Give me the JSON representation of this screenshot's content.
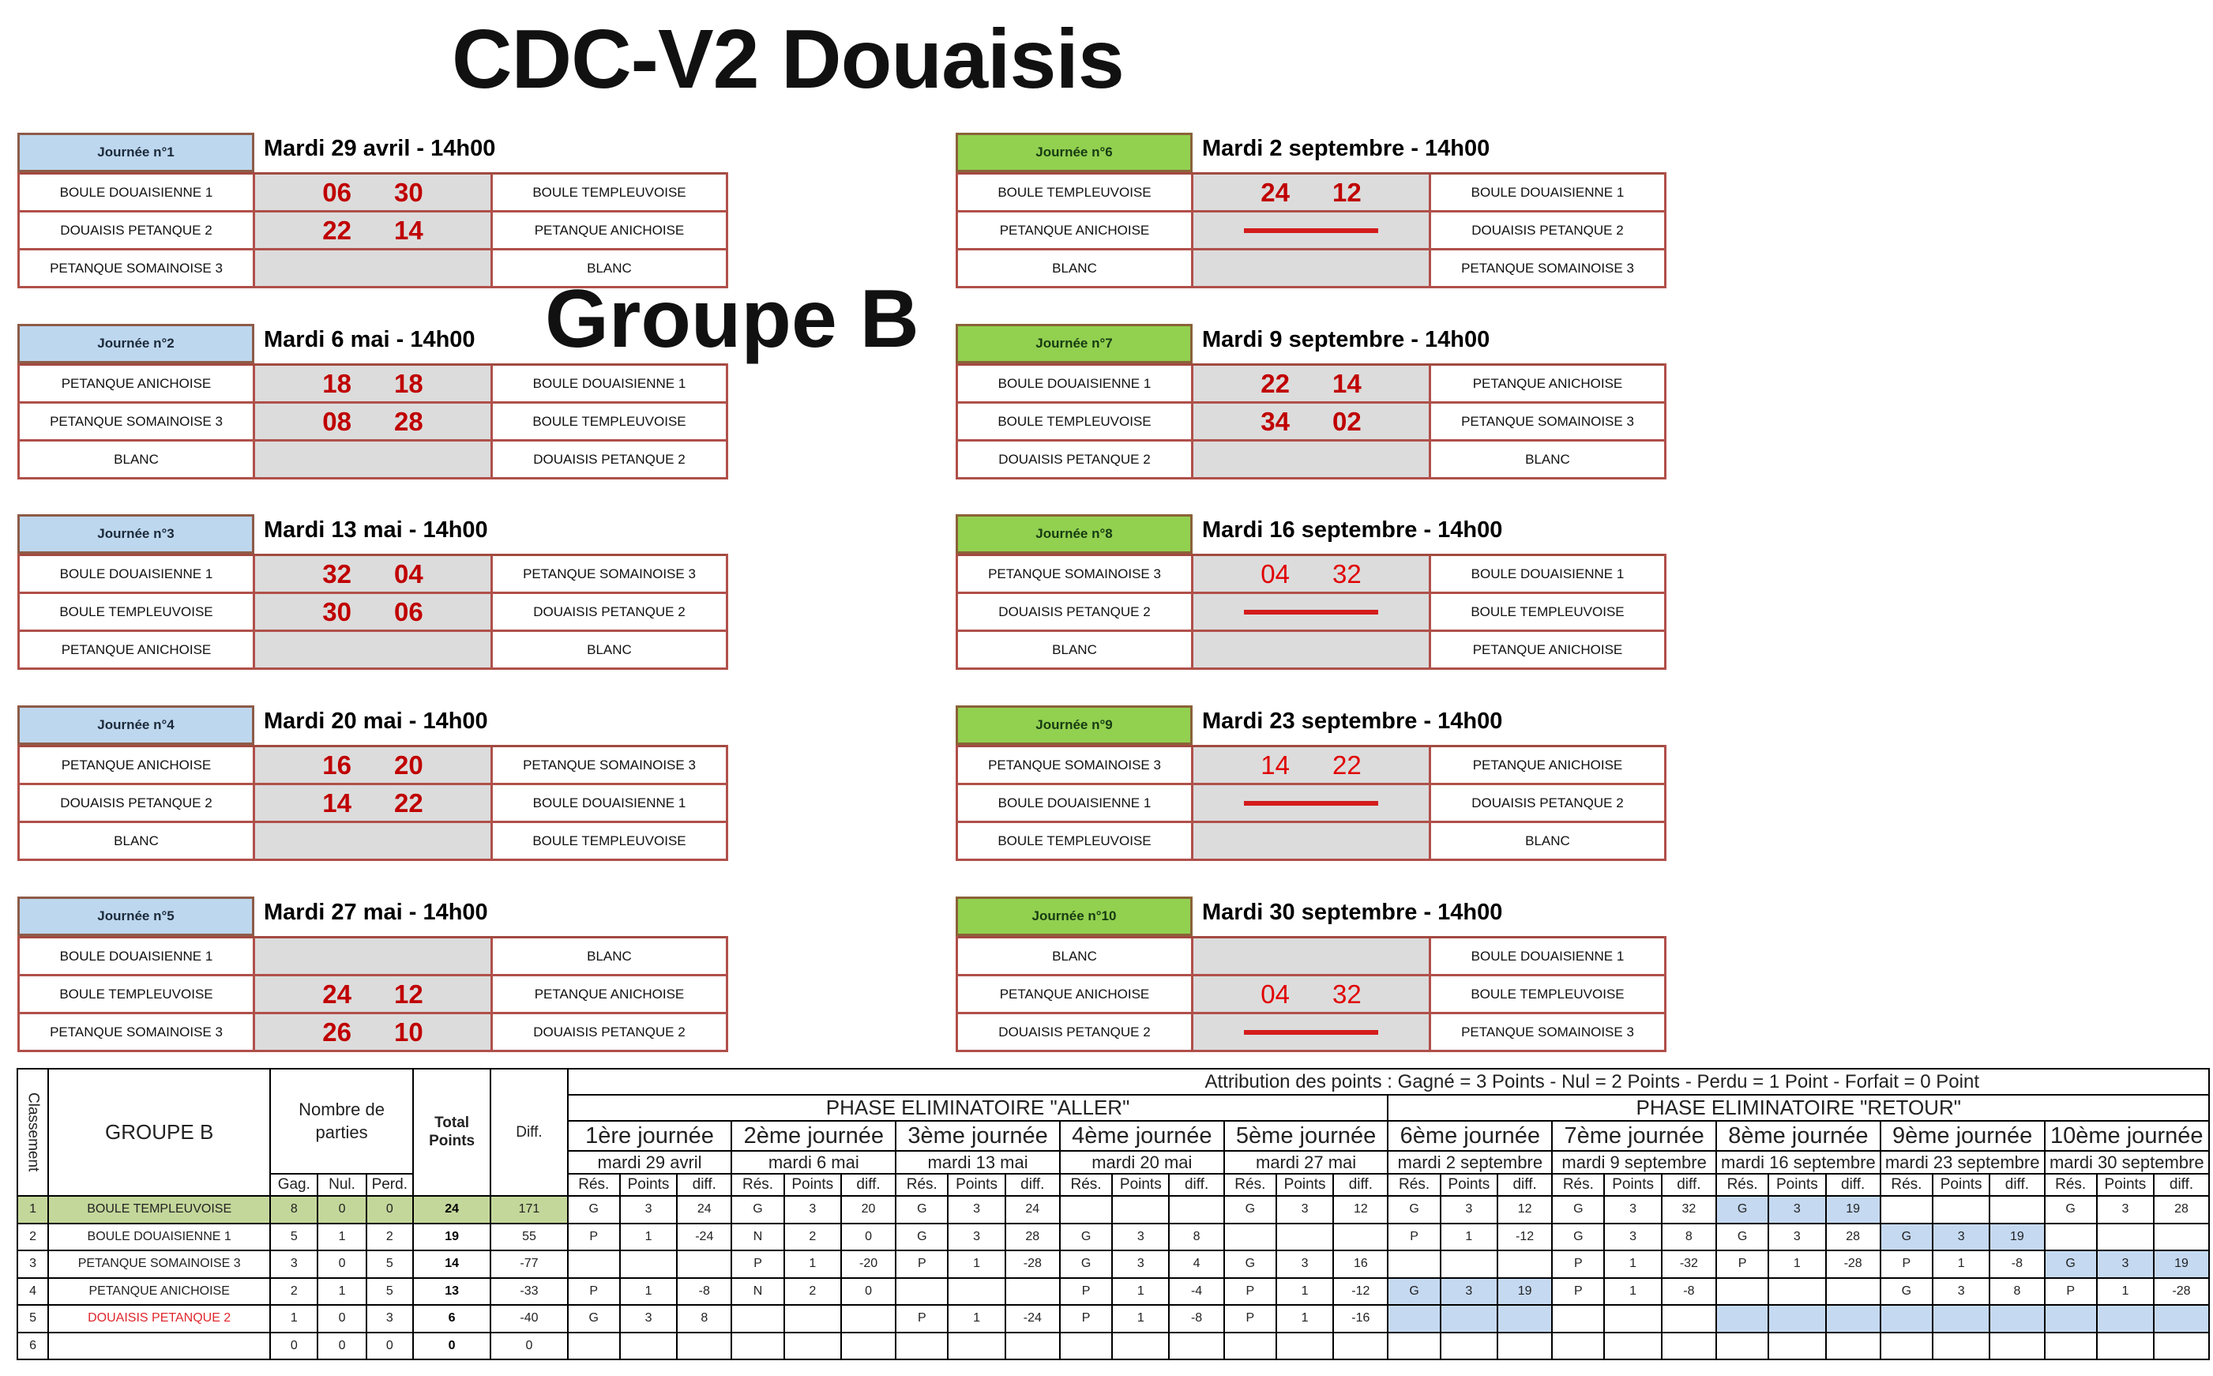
{
  "title": "CDC-V2 Douaisis",
  "group_title": "Groupe B",
  "colors": {
    "aller_header": "#bdd7ee",
    "retour_header": "#92d050",
    "score_red": "#c00000",
    "leader_row": "#c4d79b",
    "highlight_blue": "#c5d9f1",
    "card_border": "#b0504a"
  },
  "cards": [
    {
      "label": "Journée n°1",
      "date": "Mardi 29 avril - 14h00",
      "phase": "aller",
      "matches": [
        {
          "home": "BOULE DOUAISIENNE 1",
          "s1": "06",
          "s2": "30",
          "away": "BOULE TEMPLEUVOISE",
          "type": "score"
        },
        {
          "home": "DOUAISIS PETANQUE 2",
          "s1": "22",
          "s2": "14",
          "away": "PETANQUE ANICHOISE",
          "type": "score"
        },
        {
          "home": "PETANQUE SOMAINOISE 3",
          "s1": "",
          "s2": "",
          "away": "BLANC",
          "type": "empty"
        }
      ]
    },
    {
      "label": "Journée n°2",
      "date": "Mardi 6 mai - 14h00",
      "phase": "aller",
      "matches": [
        {
          "home": "PETANQUE ANICHOISE",
          "s1": "18",
          "s2": "18",
          "away": "BOULE DOUAISIENNE 1",
          "type": "score"
        },
        {
          "home": "PETANQUE SOMAINOISE 3",
          "s1": "08",
          "s2": "28",
          "away": "BOULE TEMPLEUVOISE",
          "type": "score"
        },
        {
          "home": "BLANC",
          "s1": "",
          "s2": "",
          "away": "DOUAISIS PETANQUE 2",
          "type": "empty"
        }
      ]
    },
    {
      "label": "Journée n°3",
      "date": "Mardi 13 mai - 14h00",
      "phase": "aller",
      "matches": [
        {
          "home": "BOULE DOUAISIENNE 1",
          "s1": "32",
          "s2": "04",
          "away": "PETANQUE SOMAINOISE 3",
          "type": "score"
        },
        {
          "home": "BOULE TEMPLEUVOISE",
          "s1": "30",
          "s2": "06",
          "away": "DOUAISIS PETANQUE 2",
          "type": "score"
        },
        {
          "home": "PETANQUE ANICHOISE",
          "s1": "",
          "s2": "",
          "away": "BLANC",
          "type": "empty"
        }
      ]
    },
    {
      "label": "Journée n°4",
      "date": "Mardi 20 mai - 14h00",
      "phase": "aller",
      "matches": [
        {
          "home": "PETANQUE ANICHOISE",
          "s1": "16",
          "s2": "20",
          "away": "PETANQUE SOMAINOISE 3",
          "type": "score"
        },
        {
          "home": "DOUAISIS PETANQUE 2",
          "s1": "14",
          "s2": "22",
          "away": "BOULE DOUAISIENNE 1",
          "type": "score"
        },
        {
          "home": "BLANC",
          "s1": "",
          "s2": "",
          "away": "BOULE TEMPLEUVOISE",
          "type": "empty"
        }
      ]
    },
    {
      "label": "Journée n°5",
      "date": "Mardi 27 mai - 14h00",
      "phase": "aller",
      "matches": [
        {
          "home": "BOULE DOUAISIENNE 1",
          "s1": "",
          "s2": "",
          "away": "BLANC",
          "type": "empty"
        },
        {
          "home": "BOULE TEMPLEUVOISE",
          "s1": "24",
          "s2": "12",
          "away": "PETANQUE ANICHOISE",
          "type": "score"
        },
        {
          "home": "PETANQUE SOMAINOISE 3",
          "s1": "26",
          "s2": "10",
          "away": "DOUAISIS PETANQUE 2",
          "type": "score"
        }
      ]
    },
    {
      "label": "Journée n°6",
      "date": "Mardi 2 septembre - 14h00",
      "phase": "retour",
      "matches": [
        {
          "home": "BOULE TEMPLEUVOISE",
          "s1": "24",
          "s2": "12",
          "away": "BOULE DOUAISIENNE 1",
          "type": "score"
        },
        {
          "home": "PETANQUE ANICHOISE",
          "s1": "",
          "s2": "",
          "away": "DOUAISIS PETANQUE 2",
          "type": "dash"
        },
        {
          "home": "BLANC",
          "s1": "",
          "s2": "",
          "away": "PETANQUE SOMAINOISE 3",
          "type": "empty"
        }
      ]
    },
    {
      "label": "Journée n°7",
      "date": "Mardi 9 septembre - 14h00",
      "phase": "retour",
      "matches": [
        {
          "home": "BOULE DOUAISIENNE 1",
          "s1": "22",
          "s2": "14",
          "away": "PETANQUE ANICHOISE",
          "type": "score"
        },
        {
          "home": "BOULE TEMPLEUVOISE",
          "s1": "34",
          "s2": "02",
          "away": "PETANQUE SOMAINOISE 3",
          "type": "score"
        },
        {
          "home": "DOUAISIS PETANQUE 2",
          "s1": "",
          "s2": "",
          "away": "BLANC",
          "type": "empty"
        }
      ]
    },
    {
      "label": "Journée n°8",
      "date": "Mardi 16 septembre - 14h00",
      "phase": "retour",
      "matches": [
        {
          "home": "PETANQUE SOMAINOISE 3",
          "s1": "04",
          "s2": "32",
          "away": "BOULE DOUAISIENNE 1",
          "type": "score-light"
        },
        {
          "home": "DOUAISIS PETANQUE 2",
          "s1": "",
          "s2": "",
          "away": "BOULE TEMPLEUVOISE",
          "type": "dash"
        },
        {
          "home": "BLANC",
          "s1": "",
          "s2": "",
          "away": "PETANQUE ANICHOISE",
          "type": "empty"
        }
      ]
    },
    {
      "label": "Journée n°9",
      "date": "Mardi 23 septembre - 14h00",
      "phase": "retour",
      "matches": [
        {
          "home": "PETANQUE SOMAINOISE 3",
          "s1": "14",
          "s2": "22",
          "away": "PETANQUE ANICHOISE",
          "type": "score-light"
        },
        {
          "home": "BOULE DOUAISIENNE 1",
          "s1": "",
          "s2": "",
          "away": "DOUAISIS PETANQUE 2",
          "type": "dash"
        },
        {
          "home": "BOULE TEMPLEUVOISE",
          "s1": "",
          "s2": "",
          "away": "BLANC",
          "type": "empty"
        }
      ]
    },
    {
      "label": "Journée n°10",
      "date": "Mardi 30 septembre - 14h00",
      "phase": "retour",
      "matches": [
        {
          "home": "BLANC",
          "s1": "",
          "s2": "",
          "away": "BOULE DOUAISIENNE 1",
          "type": "empty"
        },
        {
          "home": "PETANQUE ANICHOISE",
          "s1": "04",
          "s2": "32",
          "away": "BOULE TEMPLEUVOISE",
          "type": "score-light"
        },
        {
          "home": "DOUAISIS PETANQUE 2",
          "s1": "",
          "s2": "",
          "away": "PETANQUE SOMAINOISE 3",
          "type": "dash"
        }
      ]
    }
  ],
  "standings": {
    "attribution": "Attribution des points : Gagné = 3 Points - Nul = 2 Points - Perdu = 1 Point - Forfait = 0 Point",
    "col_classement": "Classement",
    "col_group": "GROUPE B",
    "col_nombre": "Nombre de parties",
    "col_gag": "Gag.",
    "col_nul": "Nul.",
    "col_perd": "Perd.",
    "col_total": "Total Points",
    "col_diff": "Diff.",
    "phase_aller": "PHASE ELIMINATOIRE \"ALLER\"",
    "phase_retour": "PHASE ELIMINATOIRE \"RETOUR\"",
    "sub_res": "Rés.",
    "sub_points": "Points",
    "sub_diff": "diff.",
    "rounds": [
      {
        "label": "1ère journée",
        "date": "mardi 29 avril"
      },
      {
        "label": "2ème journée",
        "date": "mardi 6 mai"
      },
      {
        "label": "3ème journée",
        "date": "mardi 13 mai"
      },
      {
        "label": "4ème journée",
        "date": "mardi 20 mai"
      },
      {
        "label": "5ème journée",
        "date": "mardi 27 mai"
      },
      {
        "label": "6ème journée",
        "date": "mardi 2 septembre"
      },
      {
        "label": "7ème journée",
        "date": "mardi 9 septembre"
      },
      {
        "label": "8ème journée",
        "date": "mardi 16 septembre"
      },
      {
        "label": "9ème journée",
        "date": "mardi 23 septembre"
      },
      {
        "label": "10ème journée",
        "date": "mardi 30 septembre"
      }
    ],
    "rows": [
      {
        "rank": "1",
        "team": "BOULE TEMPLEUVOISE",
        "gag": "8",
        "nul": "0",
        "perd": "0",
        "total": "24",
        "diff": "171",
        "leader": true,
        "red": false,
        "results": [
          [
            "G",
            "3",
            "24"
          ],
          [
            "G",
            "3",
            "20"
          ],
          [
            "G",
            "3",
            "24"
          ],
          [
            "",
            "",
            ""
          ],
          [
            "G",
            "3",
            "12"
          ],
          [
            "G",
            "3",
            "12"
          ],
          [
            "G",
            "3",
            "32"
          ],
          [
            "G",
            "3",
            "19"
          ],
          [
            "",
            "",
            ""
          ],
          [
            "G",
            "3",
            "28"
          ]
        ],
        "blue": [
          false,
          false,
          false,
          false,
          false,
          false,
          false,
          true,
          false,
          false
        ]
      },
      {
        "rank": "2",
        "team": "BOULE DOUAISIENNE 1",
        "gag": "5",
        "nul": "1",
        "perd": "2",
        "total": "19",
        "diff": "55",
        "leader": false,
        "red": false,
        "results": [
          [
            "P",
            "1",
            "-24"
          ],
          [
            "N",
            "2",
            "0"
          ],
          [
            "G",
            "3",
            "28"
          ],
          [
            "G",
            "3",
            "8"
          ],
          [
            "",
            "",
            ""
          ],
          [
            "P",
            "1",
            "-12"
          ],
          [
            "G",
            "3",
            "8"
          ],
          [
            "G",
            "3",
            "28"
          ],
          [
            "G",
            "3",
            "19"
          ],
          [
            "",
            "",
            ""
          ]
        ],
        "blue": [
          false,
          false,
          false,
          false,
          false,
          false,
          false,
          false,
          true,
          false
        ]
      },
      {
        "rank": "3",
        "team": "PETANQUE SOMAINOISE 3",
        "gag": "3",
        "nul": "0",
        "perd": "5",
        "total": "14",
        "diff": "-77",
        "leader": false,
        "red": false,
        "results": [
          [
            "",
            "",
            ""
          ],
          [
            "P",
            "1",
            "-20"
          ],
          [
            "P",
            "1",
            "-28"
          ],
          [
            "G",
            "3",
            "4"
          ],
          [
            "G",
            "3",
            "16"
          ],
          [
            "",
            "",
            ""
          ],
          [
            "P",
            "1",
            "-32"
          ],
          [
            "P",
            "1",
            "-28"
          ],
          [
            "P",
            "1",
            "-8"
          ],
          [
            "G",
            "3",
            "19"
          ]
        ],
        "blue": [
          false,
          false,
          false,
          false,
          false,
          false,
          false,
          false,
          false,
          true
        ]
      },
      {
        "rank": "4",
        "team": "PETANQUE ANICHOISE",
        "gag": "2",
        "nul": "1",
        "perd": "5",
        "total": "13",
        "diff": "-33",
        "leader": false,
        "red": false,
        "results": [
          [
            "P",
            "1",
            "-8"
          ],
          [
            "N",
            "2",
            "0"
          ],
          [
            "",
            "",
            ""
          ],
          [
            "P",
            "1",
            "-4"
          ],
          [
            "P",
            "1",
            "-12"
          ],
          [
            "G",
            "3",
            "19"
          ],
          [
            "P",
            "1",
            "-8"
          ],
          [
            "",
            "",
            ""
          ],
          [
            "G",
            "3",
            "8"
          ],
          [
            "P",
            "1",
            "-28"
          ]
        ],
        "blue": [
          false,
          false,
          false,
          false,
          false,
          true,
          false,
          false,
          false,
          false
        ]
      },
      {
        "rank": "5",
        "team": "DOUAISIS PETANQUE 2",
        "gag": "1",
        "nul": "0",
        "perd": "3",
        "total": "6",
        "diff": "-40",
        "leader": false,
        "red": true,
        "results": [
          [
            "G",
            "3",
            "8"
          ],
          [
            "",
            "",
            ""
          ],
          [
            "P",
            "1",
            "-24"
          ],
          [
            "P",
            "1",
            "-8"
          ],
          [
            "P",
            "1",
            "-16"
          ],
          [
            "",
            "",
            ""
          ],
          [
            "",
            "",
            ""
          ],
          [
            "",
            "",
            ""
          ],
          [
            "",
            "",
            ""
          ],
          [
            "",
            "",
            ""
          ]
        ],
        "blue": [
          false,
          false,
          false,
          false,
          false,
          true,
          false,
          true,
          true,
          true
        ]
      },
      {
        "rank": "6",
        "team": "",
        "gag": "0",
        "nul": "0",
        "perd": "0",
        "total": "0",
        "diff": "0",
        "leader": false,
        "red": false,
        "results": [
          [
            "",
            "",
            ""
          ],
          [
            "",
            "",
            ""
          ],
          [
            "",
            "",
            ""
          ],
          [
            "",
            "",
            ""
          ],
          [
            "",
            "",
            ""
          ],
          [
            "",
            "",
            ""
          ],
          [
            "",
            "",
            ""
          ],
          [
            "",
            "",
            ""
          ],
          [
            "",
            "",
            ""
          ],
          [
            "",
            "",
            ""
          ]
        ],
        "blue": [
          false,
          false,
          false,
          false,
          false,
          false,
          false,
          false,
          false,
          false
        ]
      }
    ]
  }
}
